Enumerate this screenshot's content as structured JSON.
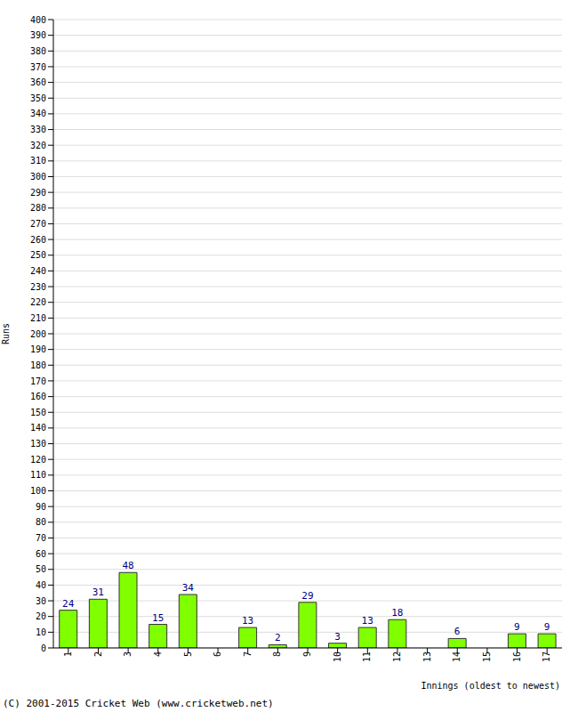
{
  "chart_data": {
    "type": "bar",
    "categories": [
      "1",
      "2",
      "3",
      "4",
      "5",
      "6",
      "7",
      "8",
      "9",
      "10",
      "11",
      "12",
      "13",
      "14",
      "15",
      "16",
      "17"
    ],
    "values": [
      24,
      31,
      48,
      15,
      34,
      0,
      13,
      2,
      29,
      3,
      13,
      18,
      0,
      6,
      0,
      9,
      9
    ],
    "color": "#80ff00",
    "ylim": [
      0,
      400
    ],
    "yticks": [
      0,
      10,
      20,
      30,
      40,
      50,
      60,
      70,
      80,
      90,
      100,
      110,
      120,
      130,
      140,
      150,
      160,
      170,
      180,
      190,
      200,
      210,
      220,
      230,
      240,
      250,
      260,
      270,
      280,
      290,
      300,
      310,
      320,
      330,
      340,
      350,
      360,
      370,
      380,
      390,
      400
    ],
    "grid": true,
    "data_labels": true,
    "x_label": "Innings (oldest to newest)",
    "y_label": "Runs",
    "annotation": "(C) 2001-2015 Cricket Web (www.cricketweb.net)"
  }
}
